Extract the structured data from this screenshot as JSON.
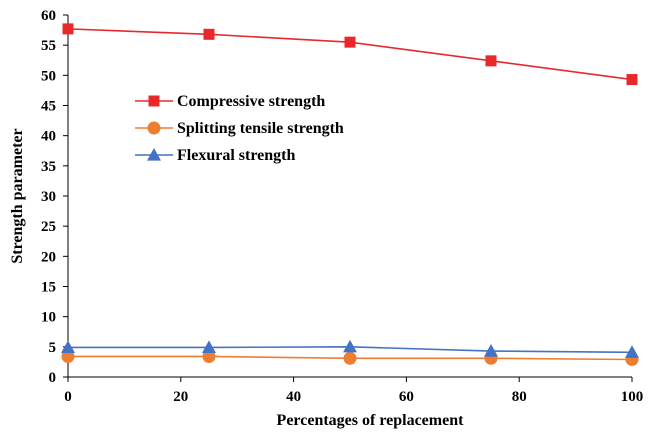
{
  "chart_data": {
    "type": "line",
    "title": "",
    "xlabel": "Percentages of replacement",
    "ylabel": "Strength parameter",
    "xlim": [
      0,
      100
    ],
    "ylim": [
      0,
      60
    ],
    "xticks": [
      0,
      20,
      40,
      60,
      80,
      100
    ],
    "yticks": [
      0,
      5,
      10,
      15,
      20,
      25,
      30,
      35,
      40,
      45,
      50,
      55,
      60
    ],
    "grid": false,
    "legend_position": "upper-left",
    "x": [
      0,
      25,
      50,
      75,
      100
    ],
    "series": [
      {
        "name": "Compressive strength",
        "values": [
          57.7,
          56.8,
          55.5,
          52.4,
          49.3
        ],
        "color": "#e8282b",
        "marker": "square"
      },
      {
        "name": "Splitting tensile strength",
        "values": [
          3.4,
          3.4,
          3.1,
          3.1,
          2.9
        ],
        "color": "#ed7d31",
        "marker": "circle"
      },
      {
        "name": "Flexural strength",
        "values": [
          4.9,
          4.9,
          5.0,
          4.3,
          4.1
        ],
        "color": "#4472c4",
        "marker": "triangle"
      }
    ]
  }
}
